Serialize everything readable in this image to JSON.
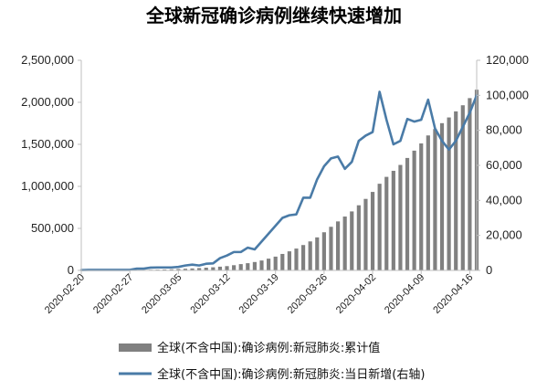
{
  "chart_data": {
    "type": "bar+line",
    "title": "全球新冠确诊病例继续快速增加",
    "x_tick_labels": [
      "2020-02-20",
      "2020-02-27",
      "2020-03-05",
      "2020-03-12",
      "2020-03-19",
      "2020-03-26",
      "2020-04-02",
      "2020-04-09",
      "2020-04-16"
    ],
    "left_axis": {
      "ylim": [
        0,
        2500000
      ],
      "ticks": [
        "0",
        "500,000",
        "1,000,000",
        "1,500,000",
        "2,000,000",
        "2,500,000"
      ]
    },
    "right_axis": {
      "ylim": [
        0,
        120000
      ],
      "ticks": [
        "0",
        "20,000",
        "40,000",
        "60,000",
        "80,000",
        "100,000",
        "120,000"
      ]
    },
    "dates": [
      "2020-02-20",
      "2020-02-21",
      "2020-02-22",
      "2020-02-23",
      "2020-02-24",
      "2020-02-25",
      "2020-02-26",
      "2020-02-27",
      "2020-02-28",
      "2020-02-29",
      "2020-03-01",
      "2020-03-02",
      "2020-03-03",
      "2020-03-04",
      "2020-03-05",
      "2020-03-06",
      "2020-03-07",
      "2020-03-08",
      "2020-03-09",
      "2020-03-10",
      "2020-03-11",
      "2020-03-12",
      "2020-03-13",
      "2020-03-14",
      "2020-03-15",
      "2020-03-16",
      "2020-03-17",
      "2020-03-18",
      "2020-03-19",
      "2020-03-20",
      "2020-03-21",
      "2020-03-22",
      "2020-03-23",
      "2020-03-24",
      "2020-03-25",
      "2020-03-26",
      "2020-03-27",
      "2020-03-28",
      "2020-03-29",
      "2020-03-30",
      "2020-03-31",
      "2020-04-01",
      "2020-04-02",
      "2020-04-03",
      "2020-04-04",
      "2020-04-05",
      "2020-04-06",
      "2020-04-07",
      "2020-04-08",
      "2020-04-09",
      "2020-04-10",
      "2020-04-11",
      "2020-04-12",
      "2020-04-13",
      "2020-04-14",
      "2020-04-15",
      "2020-04-16",
      "2020-04-17"
    ],
    "series": [
      {
        "name": "全球(不含中国):确诊病例:新冠肺炎:累计值",
        "kind": "bar",
        "axis": "left",
        "color": "#808080",
        "values": [
          1000,
          1100,
          1300,
          1600,
          2100,
          2500,
          3000,
          3700,
          4700,
          6200,
          7600,
          9200,
          11200,
          13600,
          16500,
          19800,
          23200,
          27800,
          32300,
          37200,
          44400,
          51000,
          62000,
          75000,
          86000,
          100000,
          118000,
          140000,
          164000,
          196000,
          227000,
          260000,
          302000,
          345000,
          393000,
          454000,
          519000,
          583000,
          641000,
          702000,
          775000,
          851000,
          934000,
          1031000,
          1113000,
          1185000,
          1255000,
          1338000,
          1425000,
          1511000,
          1606000,
          1682000,
          1752000,
          1820000,
          1892000,
          1965000,
          2050000,
          2150000
        ]
      },
      {
        "name": "全球(不含中国):确诊病例:新冠肺炎:当日新增(右轴)",
        "kind": "line",
        "axis": "right",
        "color": "#4a7ba7",
        "values": [
          200,
          300,
          300,
          300,
          300,
          300,
          300,
          300,
          1000,
          1000,
          1600,
          1700,
          1700,
          1700,
          2000,
          2800,
          3300,
          2800,
          3800,
          4000,
          7000,
          8500,
          10500,
          10500,
          13000,
          12000,
          16500,
          21000,
          25500,
          30000,
          31500,
          32000,
          41500,
          41500,
          52000,
          59500,
          64000,
          65000,
          58000,
          62000,
          74000,
          77000,
          79000,
          102000,
          86000,
          72000,
          74000,
          86500,
          85000,
          86000,
          97500,
          81000,
          74000,
          69000,
          74000,
          82000,
          90000,
          100000
        ]
      }
    ],
    "legend_position": "bottom"
  }
}
